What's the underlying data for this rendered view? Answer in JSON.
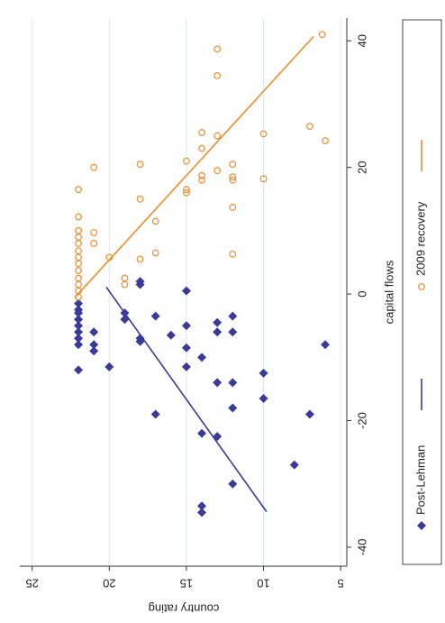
{
  "chart_data": {
    "type": "scatter",
    "x_label": "capital flows",
    "y_label": "country rating",
    "xlim": [
      -43,
      43.6
    ],
    "xticks": [
      -40,
      -20,
      0,
      20,
      40
    ],
    "ylim": [
      4.6,
      25.8
    ],
    "yticks": [
      25,
      20,
      15,
      10,
      5
    ],
    "grid": true,
    "legend": "bottom",
    "series": [
      {
        "name": "Post-Lehman",
        "color": "#3a3a9a",
        "marker": "diamond",
        "x": [
          -1.5,
          -2.5,
          -3,
          -4,
          -5,
          -6,
          -7,
          -8,
          -12,
          -6,
          -8,
          -9,
          -11.5,
          -4,
          -3,
          -7,
          -7.5,
          1.5,
          2,
          -3.5,
          -19,
          -6.5,
          0.5,
          -5,
          -8.5,
          -11.5,
          -10,
          -22,
          -33.5,
          -34.5,
          -4.5,
          -6,
          -14,
          -22.5,
          -3.5,
          -6,
          -14,
          -18,
          -30,
          -12.5,
          -16.5,
          -27,
          -19,
          -8
        ],
        "values": [
          22,
          22,
          22,
          22,
          22,
          22,
          22,
          22,
          22,
          21,
          21,
          21,
          20,
          19,
          19,
          18,
          18,
          18,
          18,
          17,
          17,
          16,
          15,
          15,
          15,
          15,
          14,
          14,
          14,
          14,
          13,
          13,
          13,
          13,
          12,
          12,
          12,
          12,
          12,
          10,
          10,
          8,
          7,
          6
        ],
        "fit": {
          "x": [
            1.1,
            -34.4
          ],
          "values": [
            20.2,
            9.8
          ]
        }
      },
      {
        "name": "2009 recovery",
        "color": "#f08c2e",
        "marker": "circle",
        "x": [
          -0.5,
          0.5,
          1.5,
          2.5,
          3.7,
          4.8,
          5.8,
          6.8,
          8,
          9,
          10,
          12.2,
          16.5,
          9.7,
          8,
          20,
          5.8,
          2.5,
          1.5,
          15,
          20.5,
          5.5,
          11.5,
          6.5,
          16,
          16.5,
          21,
          18.7,
          18,
          23,
          25.5,
          19.5,
          25,
          34.5,
          38.7,
          20.5,
          18.5,
          18,
          13.7,
          6.3,
          18.2,
          25.3,
          26.5,
          41,
          24.2
        ],
        "values": [
          22,
          22,
          22,
          22,
          22,
          22,
          22,
          22,
          22,
          22,
          22,
          22,
          22,
          21,
          21,
          21,
          20,
          19,
          19,
          18,
          18,
          18,
          17,
          17,
          15,
          15,
          15,
          14,
          14,
          14,
          14,
          13,
          13,
          13,
          13,
          12,
          12,
          12,
          12,
          12,
          10,
          10,
          7,
          6.2,
          6
        ],
        "fit": {
          "x": [
            -0.6,
            40.7
          ],
          "values": [
            22.25,
            6.75
          ]
        }
      }
    ]
  }
}
